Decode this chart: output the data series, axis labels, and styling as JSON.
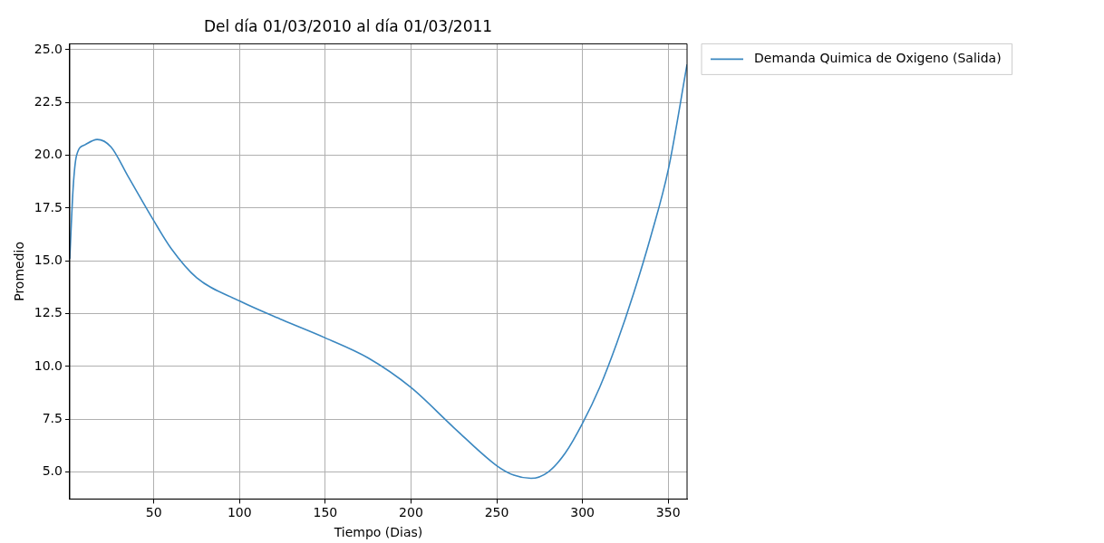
{
  "chart_data": {
    "type": "line",
    "title": "Del día 01/03/2010 al día 01/03/2011",
    "xlabel": "Tiempo (Dias)",
    "ylabel": "Promedio",
    "xlim": [
      1,
      361
    ],
    "ylim": [
      3.72,
      25.28
    ],
    "xticks": [
      50,
      100,
      150,
      200,
      250,
      300,
      350
    ],
    "yticks": [
      {
        "value": 5,
        "label": "5.0"
      },
      7.5,
      {
        "value": 10,
        "label": "10.0"
      },
      12.5,
      {
        "value": 15,
        "label": "15.0"
      },
      17.5,
      {
        "value": 20,
        "label": "20.0"
      },
      22.5,
      {
        "value": 25,
        "label": "25.0"
      }
    ],
    "grid": true,
    "legend": "top right",
    "marker": "none",
    "line_style": "solid",
    "series": [
      {
        "name": "Demanda Quimica de Oxigeno (Salida)",
        "color": "#3a87c0",
        "x": [
          1,
          3,
          5,
          10,
          17,
          25,
          35,
          50,
          60,
          75,
          100,
          125,
          150,
          175,
          200,
          225,
          250,
          260,
          270,
          280,
          290,
          300,
          310,
          320,
          330,
          340,
          350,
          361
        ],
        "values": [
          15.1,
          18.5,
          20.0,
          20.5,
          20.75,
          20.4,
          19.0,
          16.9,
          15.6,
          14.2,
          13.1,
          12.2,
          11.35,
          10.4,
          9.0,
          7.1,
          5.3,
          4.85,
          4.7,
          5.0,
          5.9,
          7.3,
          9.0,
          11.1,
          13.5,
          16.2,
          19.3,
          24.3
        ]
      }
    ]
  }
}
